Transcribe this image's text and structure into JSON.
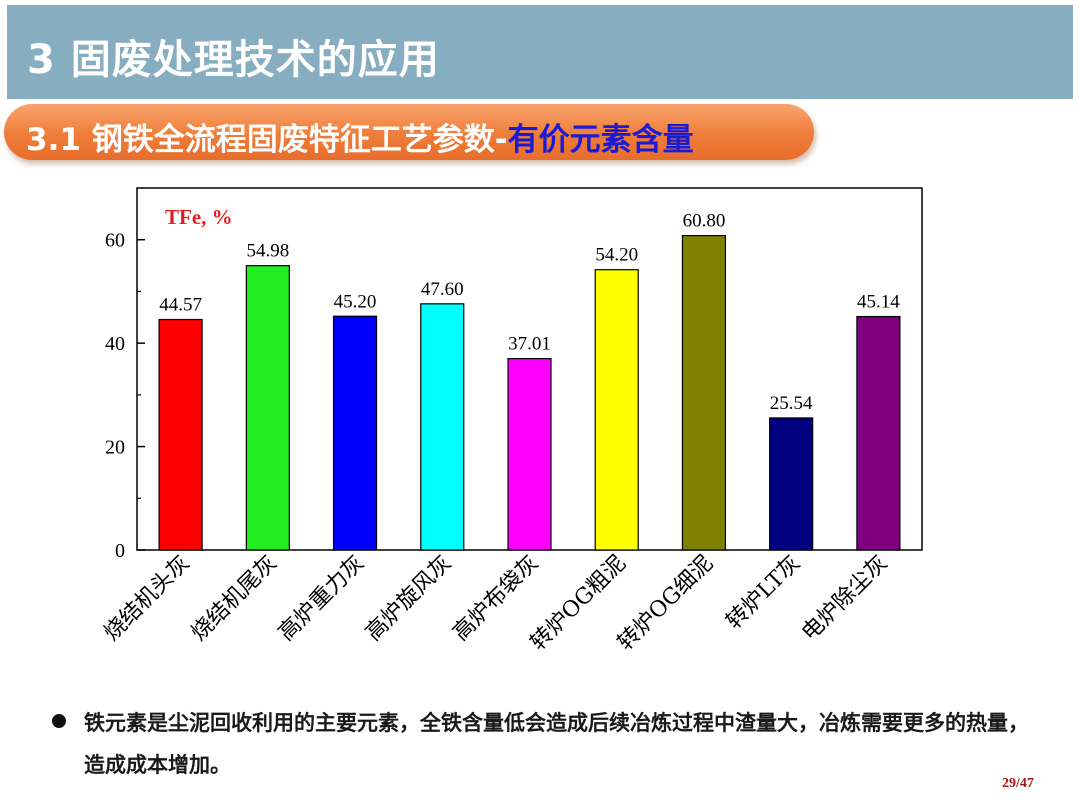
{
  "header": {
    "title": "3 固废处理技术的应用",
    "subtitle_prefix": "3.1 钢铁全流程固废特征工艺参数-",
    "subtitle_accent": "有价元素含量"
  },
  "chart_data": {
    "type": "bar",
    "annotation": "TFe, %",
    "categories": [
      "烧结机头灰",
      "烧结机尾灰",
      "高炉重力灰",
      "高炉旋风灰",
      "高炉布袋灰",
      "转炉OG粗泥",
      "转炉OG细泥",
      "转炉LT灰",
      "电炉除尘灰"
    ],
    "values": [
      44.57,
      54.98,
      45.2,
      47.6,
      37.01,
      54.2,
      60.8,
      25.54,
      45.14
    ],
    "value_labels": [
      "44.57",
      "54.98",
      "45.20",
      "47.60",
      "37.01",
      "54.20",
      "60.80",
      "25.54",
      "45.14"
    ],
    "colors": [
      "#ff0000",
      "#22ee22",
      "#0000ff",
      "#00ffff",
      "#ff00ff",
      "#ffff00",
      "#808000",
      "#000080",
      "#800080"
    ],
    "ylim": [
      0,
      70
    ],
    "yticks": [
      0,
      20,
      40,
      60
    ],
    "ylabel": "",
    "grid": false
  },
  "bullet": {
    "bold_lead": "铁元素",
    "text": "是尘泥回收利用的主要元素，全铁含量低会造成后续冶炼过程中渣量大，冶炼需要更多的热量，造成成本增加。"
  },
  "footer": {
    "page": "29/47"
  }
}
